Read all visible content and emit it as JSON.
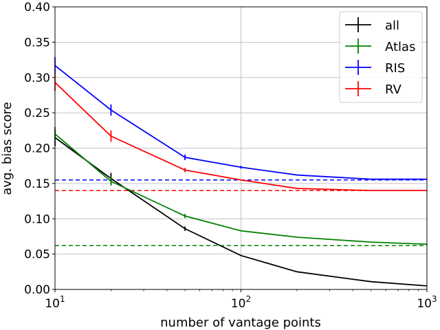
{
  "chart_data": {
    "type": "line",
    "title": "",
    "xlabel": "number of vantage points",
    "ylabel": "avg. bias score",
    "xscale": "log",
    "xlim": [
      10,
      1000
    ],
    "ylim": [
      0,
      0.4
    ],
    "x_ticks": [
      10,
      100,
      1000
    ],
    "x_tick_labels": [
      {
        "base": "10",
        "exp": "1"
      },
      {
        "base": "10",
        "exp": "2"
      },
      {
        "base": "10",
        "exp": "3"
      }
    ],
    "y_ticks": [
      0.0,
      0.05,
      0.1,
      0.15,
      0.2,
      0.25,
      0.3,
      0.35,
      0.4
    ],
    "y_tick_labels": [
      "0.00",
      "0.05",
      "0.10",
      "0.15",
      "0.20",
      "0.25",
      "0.30",
      "0.35",
      "0.40"
    ],
    "grid": true,
    "legend_position": "top-right",
    "x": [
      10,
      20,
      50,
      100,
      200,
      500,
      1000
    ],
    "series": [
      {
        "name": "all",
        "color": "#000000",
        "values": [
          0.215,
          0.157,
          0.086,
          0.048,
          0.025,
          0.011,
          0.005
        ],
        "errors": [
          0.012,
          0.008,
          0.003,
          0.0,
          0.0,
          0.0,
          0.0
        ],
        "baseline": null
      },
      {
        "name": "Atlas",
        "color": "#008000",
        "values": [
          0.22,
          0.153,
          0.104,
          0.083,
          0.074,
          0.067,
          0.064
        ],
        "errors": [
          0.01,
          0.006,
          0.003,
          0.0,
          0.0,
          0.0,
          0.0
        ],
        "baseline": 0.062
      },
      {
        "name": "RIS",
        "color": "#0000ff",
        "values": [
          0.317,
          0.254,
          0.187,
          0.173,
          0.162,
          0.156,
          0.156
        ],
        "errors": [
          0.012,
          0.008,
          0.004,
          0.002,
          0.0,
          0.0,
          0.0
        ],
        "baseline": 0.155
      },
      {
        "name": "RV",
        "color": "#ff0000",
        "values": [
          0.293,
          0.217,
          0.169,
          0.155,
          0.143,
          0.14,
          0.14
        ],
        "errors": [
          0.012,
          0.008,
          0.003,
          0.0,
          0.0,
          0.0,
          0.0
        ],
        "baseline": 0.14
      }
    ]
  }
}
